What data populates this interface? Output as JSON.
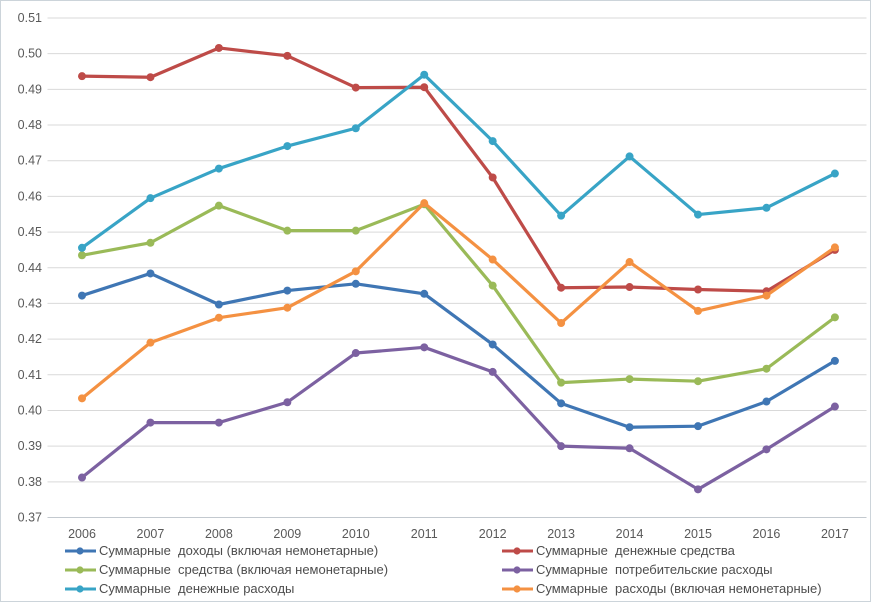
{
  "window": {
    "background": "#ffffff",
    "border_color": "#ccd4da"
  },
  "chart_data": {
    "type": "line",
    "title": "",
    "xlabel": "",
    "ylabel": "",
    "x": [
      "2006",
      "2007",
      "2008",
      "2009",
      "2010",
      "2011",
      "2012",
      "2013",
      "2014",
      "2015",
      "2016",
      "2017"
    ],
    "ylim": [
      0.37,
      0.51
    ],
    "ytick_step": 0.01,
    "ytick_labels": [
      "0.51",
      "0.50",
      "0.49",
      "0.48",
      "0.47",
      "0.46",
      "0.45",
      "0.44",
      "0.43",
      "0.42",
      "0.41",
      "0.40",
      "0.39",
      "0.38",
      "0.37"
    ],
    "grid": true,
    "gridline_color": "#d9d9d9",
    "axis_line_color": "#c3c9cf",
    "axis_text_color": "#595959",
    "legend_position": "bottom-two-columns",
    "series": [
      {
        "name": "Суммарные  доходы (включая немонетарные)",
        "color": "#3F76B4",
        "values": [
          0.4322,
          0.4384,
          0.4297,
          0.4336,
          0.4355,
          0.4327,
          0.4185,
          0.402,
          0.3953,
          0.3956,
          0.4025,
          0.4139
        ]
      },
      {
        "name": "Суммарные  денежные средства",
        "color": "#BE4B48",
        "values": [
          0.4937,
          0.4934,
          0.5016,
          0.4994,
          0.4905,
          0.4906,
          0.4653,
          0.4344,
          0.4346,
          0.4339,
          0.4334,
          0.445
        ]
      },
      {
        "name": "Суммарные  средства (включая немонетарные)",
        "color": "#9ABA58",
        "values": [
          0.4435,
          0.447,
          0.4574,
          0.4504,
          0.4504,
          0.4578,
          0.435,
          0.4078,
          0.4088,
          0.4082,
          0.4117,
          0.4261
        ]
      },
      {
        "name": "Суммарные  потребительские расходы",
        "color": "#7C61A1",
        "values": [
          0.3812,
          0.3966,
          0.3966,
          0.4023,
          0.4161,
          0.4177,
          0.4108,
          0.39,
          0.3894,
          0.3779,
          0.3891,
          0.4011
        ]
      },
      {
        "name": "Суммарные  денежные расходы",
        "color": "#38A4C6",
        "values": [
          0.4456,
          0.4595,
          0.4678,
          0.4741,
          0.4791,
          0.4941,
          0.4755,
          0.4546,
          0.4712,
          0.4549,
          0.4568,
          0.4664
        ]
      },
      {
        "name": "Суммарные  расходы (включая немонетарные)",
        "color": "#F49142",
        "values": [
          0.4034,
          0.419,
          0.426,
          0.4288,
          0.439,
          0.4581,
          0.4423,
          0.4245,
          0.4416,
          0.4279,
          0.4322,
          0.4457
        ]
      }
    ],
    "legend_columns": [
      [
        0,
        2,
        4
      ],
      [
        1,
        3,
        5
      ]
    ]
  }
}
